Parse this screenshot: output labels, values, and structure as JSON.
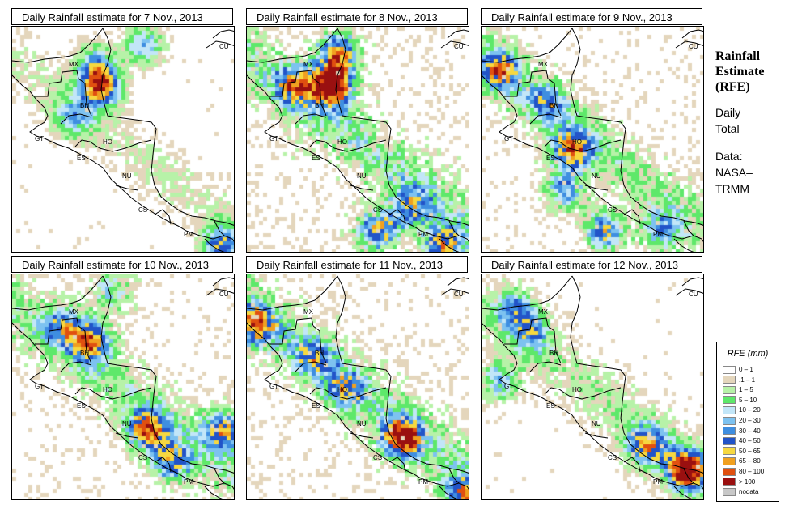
{
  "panels": [
    {
      "title": "Daily Rainfall estimate for  7 Nov., 2013",
      "seed": 7,
      "wet": 0.55,
      "hot": [
        [
          108,
          70,
          2.6
        ],
        [
          72,
          110,
          1.2
        ],
        [
          255,
          270,
          1.8
        ],
        [
          100,
          40,
          1.2
        ],
        [
          160,
          20,
          1.5
        ]
      ]
    },
    {
      "title": "Daily Rainfall estimate for  8 Nov., 2013",
      "seed": 8,
      "wet": 1.05,
      "hot": [
        [
          105,
          70,
          3.0
        ],
        [
          110,
          30,
          2.4
        ],
        [
          160,
          250,
          2.2
        ],
        [
          240,
          270,
          2.0
        ],
        [
          60,
          70,
          1.8
        ],
        [
          200,
          220,
          1.4
        ]
      ]
    },
    {
      "title": "Daily Rainfall estimate for  9 Nov., 2013",
      "seed": 9,
      "wet": 0.85,
      "hot": [
        [
          110,
          150,
          2.2
        ],
        [
          150,
          250,
          2.0
        ],
        [
          100,
          200,
          1.6
        ],
        [
          20,
          50,
          2.0
        ],
        [
          220,
          250,
          1.4
        ],
        [
          80,
          90,
          1.3
        ]
      ]
    },
    {
      "title": "Daily Rainfall estimate for  10 Nov., 2013",
      "seed": 10,
      "wet": 0.9,
      "hot": [
        [
          95,
          80,
          2.2
        ],
        [
          165,
          190,
          2.2
        ],
        [
          260,
          190,
          2.0
        ],
        [
          195,
          230,
          1.8
        ],
        [
          60,
          60,
          1.4
        ],
        [
          120,
          20,
          1.2
        ]
      ]
    },
    {
      "title": "Daily Rainfall estimate for  11 Nov., 2013",
      "seed": 11,
      "wet": 1.0,
      "hot": [
        [
          190,
          200,
          2.6
        ],
        [
          10,
          60,
          2.0
        ],
        [
          265,
          270,
          1.8
        ],
        [
          120,
          140,
          1.4
        ],
        [
          80,
          100,
          1.3
        ]
      ]
    },
    {
      "title": "Daily Rainfall estimate for  12 Nov., 2013",
      "seed": 12,
      "wet": 0.7,
      "hot": [
        [
          250,
          240,
          3.0
        ],
        [
          200,
          210,
          2.0
        ],
        [
          40,
          40,
          1.4
        ],
        [
          20,
          130,
          1.4
        ],
        [
          60,
          70,
          1.2
        ]
      ]
    }
  ],
  "country_labels": [
    "MX",
    "BH",
    "GT",
    "HO",
    "ES",
    "NU",
    "CS",
    "PM",
    "CU"
  ],
  "side": {
    "title_lines": [
      "Rainfall",
      "Estimate",
      "(RFE)"
    ],
    "desc_lines": [
      "Daily",
      "Total"
    ],
    "data_lines": [
      "Data:",
      "NASA–",
      "TRMM"
    ]
  },
  "legend": {
    "title": "RFE (mm)",
    "items": [
      {
        "label": "0 – 1",
        "color": "#ffffff"
      },
      {
        "label": ".1 – 1",
        "color": "#e4d6bc"
      },
      {
        "label": "1 – 5",
        "color": "#b7f2a8"
      },
      {
        "label": "5 – 10",
        "color": "#5ee86a"
      },
      {
        "label": "10 – 20",
        "color": "#c2e6f8"
      },
      {
        "label": "20 – 30",
        "color": "#7dc2f0"
      },
      {
        "label": "30 – 40",
        "color": "#3f8ee0"
      },
      {
        "label": "40 – 50",
        "color": "#2254c8"
      },
      {
        "label": "50 – 65",
        "color": "#f6d840"
      },
      {
        "label": "65 – 80",
        "color": "#f0a020"
      },
      {
        "label": "80 – 100",
        "color": "#e05010"
      },
      {
        "label": "> 100",
        "color": "#9a1010"
      },
      {
        "label": "nodata",
        "color": "#c8c8c8"
      }
    ]
  }
}
